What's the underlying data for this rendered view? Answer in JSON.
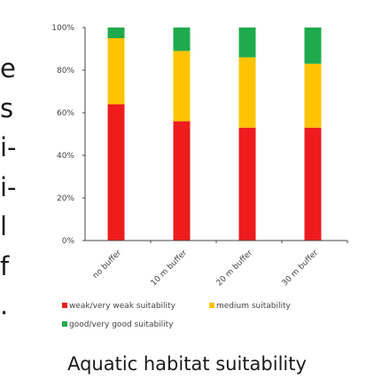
{
  "left_edge_lines": [
    "e",
    "s",
    "i-",
    "i-",
    "l",
    "f",
    "."
  ],
  "caption": "Aquatic habitat suitability",
  "chart_data": {
    "type": "bar",
    "stacked": true,
    "categories": [
      "no buffer",
      "10 m buffer",
      "20 m buffer",
      "30 m buffer"
    ],
    "series": [
      {
        "name": "weak/very weak suitability",
        "color": "#ee1c1c",
        "values": [
          64,
          56,
          53,
          53
        ]
      },
      {
        "name": "medium suitability",
        "color": "#ffc400",
        "values": [
          31,
          33,
          33,
          30
        ]
      },
      {
        "name": "good/very good suitability",
        "color": "#1fab4d",
        "values": [
          5,
          11,
          14,
          17
        ]
      }
    ],
    "yticks": [
      "0%",
      "20%",
      "40%",
      "60%",
      "80%",
      "100%"
    ],
    "ylim": [
      0,
      100
    ],
    "grid": false,
    "legend_position": "bottom"
  }
}
